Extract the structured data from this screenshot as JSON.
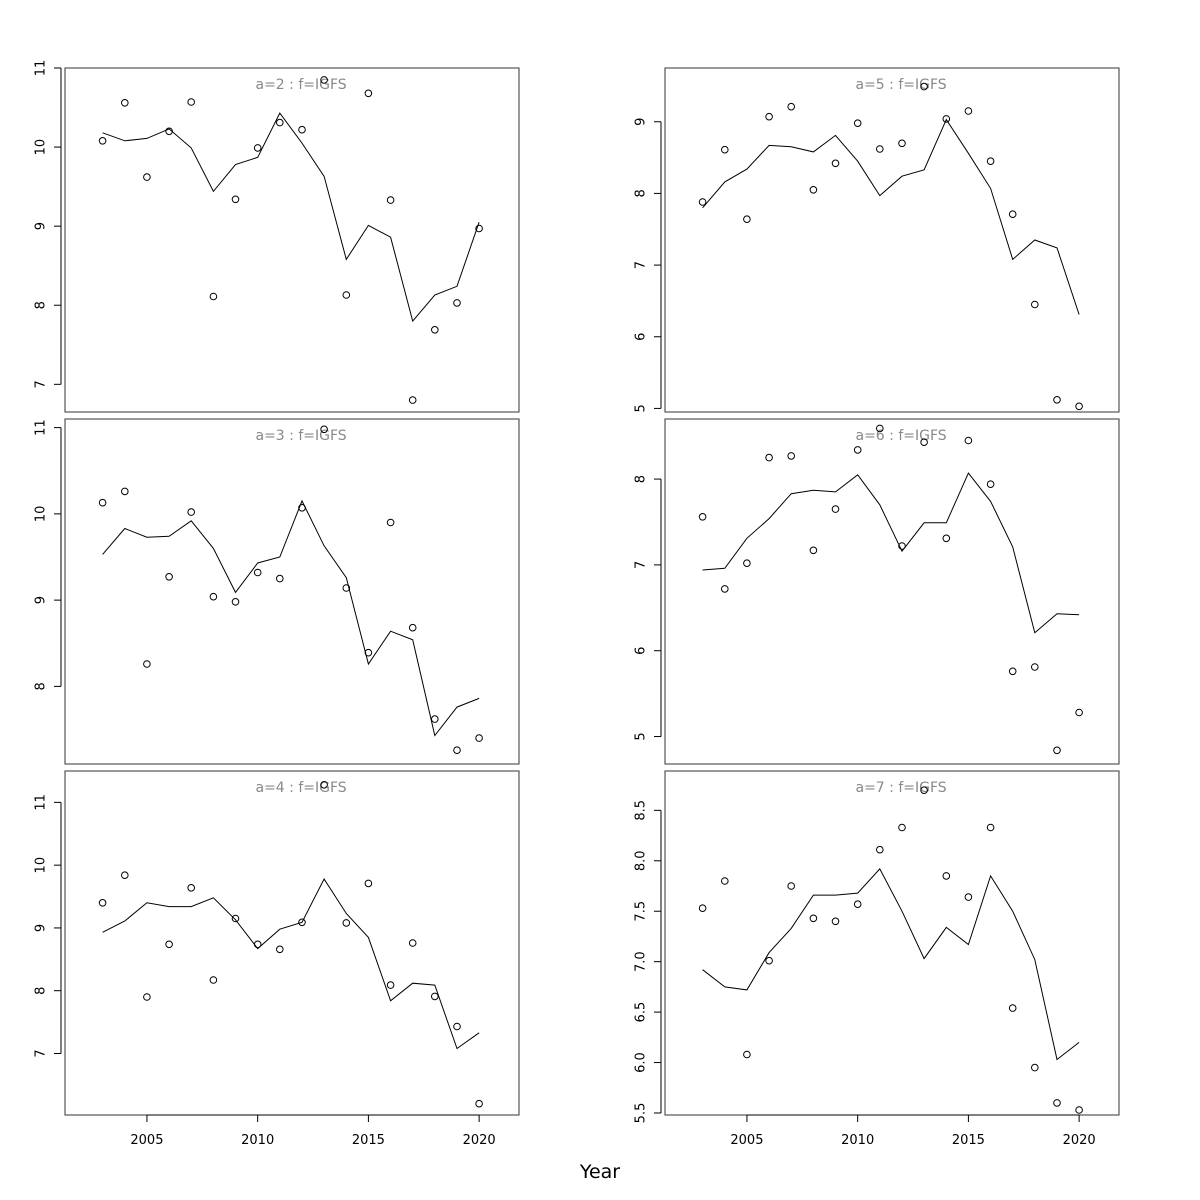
{
  "chart_data": {
    "type": "scatter",
    "xlabel": "Year",
    "x": [
      2003,
      2004,
      2005,
      2006,
      2007,
      2008,
      2009,
      2010,
      2011,
      2012,
      2013,
      2014,
      2015,
      2016,
      2017,
      2018,
      2019,
      2020
    ],
    "xticks": [
      2005,
      2010,
      2015,
      2020
    ],
    "xlim": [
      2001.3,
      2021.8
    ],
    "panels": [
      {
        "title": "a=2 : f=IGFS",
        "ylim": [
          6.65,
          11.0
        ],
        "yticks": [
          7,
          8,
          9,
          10,
          11
        ],
        "observed": [
          10.08,
          10.56,
          9.62,
          10.2,
          10.57,
          8.11,
          9.34,
          9.99,
          10.31,
          10.22,
          10.85,
          8.13,
          10.68,
          9.33,
          6.8,
          7.69,
          8.03,
          8.97
        ],
        "fitted": [
          10.18,
          10.08,
          10.11,
          10.23,
          9.99,
          9.44,
          9.78,
          9.87,
          10.43,
          10.05,
          9.63,
          8.58,
          9.01,
          8.86,
          7.8,
          8.13,
          8.24,
          9.05
        ]
      },
      {
        "title": "a=3 : f=IGFS",
        "ylim": [
          7.1,
          11.1
        ],
        "yticks": [
          8,
          9,
          10,
          11
        ],
        "observed": [
          10.13,
          10.26,
          8.26,
          9.27,
          10.02,
          9.04,
          8.98,
          9.32,
          9.25,
          10.07,
          10.98,
          9.14,
          8.39,
          9.9,
          8.68,
          7.62,
          7.26,
          7.4
        ],
        "fitted": [
          9.53,
          9.83,
          9.73,
          9.74,
          9.92,
          9.6,
          9.09,
          9.43,
          9.5,
          10.15,
          9.63,
          9.26,
          8.26,
          8.64,
          8.54,
          7.43,
          7.76,
          7.86
        ]
      },
      {
        "title": "a=4 : f=IGFS",
        "ylim": [
          6.02,
          11.5
        ],
        "yticks": [
          7,
          8,
          9,
          10,
          11
        ],
        "observed": [
          9.4,
          9.84,
          7.9,
          8.74,
          9.64,
          8.17,
          9.15,
          8.74,
          8.66,
          9.09,
          11.28,
          9.08,
          9.71,
          8.09,
          8.76,
          7.91,
          7.43,
          6.2
        ],
        "fitted": [
          8.93,
          9.11,
          9.4,
          9.34,
          9.34,
          9.48,
          9.13,
          8.67,
          8.98,
          9.09,
          9.78,
          9.23,
          8.85,
          7.84,
          8.12,
          8.09,
          7.08,
          7.33
        ]
      },
      {
        "title": "a=5 : f=IGFS",
        "ylim": [
          4.95,
          9.75
        ],
        "yticks": [
          5,
          6,
          7,
          8,
          9
        ],
        "observed": [
          7.88,
          8.61,
          7.64,
          9.07,
          9.21,
          8.05,
          8.42,
          8.98,
          8.62,
          8.7,
          9.49,
          9.04,
          9.15,
          8.45,
          7.71,
          6.45,
          5.12,
          5.03
        ],
        "fitted": [
          7.8,
          8.16,
          8.34,
          8.67,
          8.65,
          8.58,
          8.81,
          8.45,
          7.97,
          8.24,
          8.33,
          9.03,
          8.56,
          8.07,
          7.08,
          7.35,
          7.24,
          6.31
        ]
      },
      {
        "title": "a=6 : f=IGFS",
        "ylim": [
          4.68,
          8.7
        ],
        "yticks": [
          5,
          6,
          7,
          8
        ],
        "observed": [
          7.56,
          6.72,
          7.02,
          8.25,
          8.27,
          7.17,
          7.65,
          8.34,
          8.59,
          7.22,
          8.43,
          7.31,
          8.45,
          7.94,
          5.76,
          5.81,
          4.84,
          5.28
        ],
        "fitted": [
          6.94,
          6.96,
          7.31,
          7.54,
          7.83,
          7.87,
          7.85,
          8.05,
          7.7,
          7.16,
          7.49,
          7.49,
          8.07,
          7.74,
          7.21,
          6.21,
          6.43,
          6.42
        ]
      },
      {
        "title": "a=7 : f=IGFS",
        "ylim": [
          5.48,
          8.89
        ],
        "yticks": [
          5.5,
          6.0,
          6.5,
          7.0,
          7.5,
          8.0,
          8.5
        ],
        "ytick_labels": [
          "5.5",
          "6.0",
          "6.5",
          "7.0",
          "7.5",
          "8.0",
          "8.5"
        ],
        "observed": [
          7.53,
          7.8,
          6.08,
          7.01,
          7.75,
          7.43,
          7.4,
          7.57,
          8.11,
          8.33,
          8.7,
          7.85,
          7.64,
          8.33,
          6.54,
          5.95,
          5.6,
          5.53
        ],
        "fitted": [
          6.92,
          6.75,
          6.72,
          7.09,
          7.33,
          7.66,
          7.66,
          7.68,
          7.92,
          7.5,
          7.03,
          7.34,
          7.17,
          7.85,
          7.5,
          7.02,
          6.03,
          6.2
        ]
      }
    ]
  }
}
